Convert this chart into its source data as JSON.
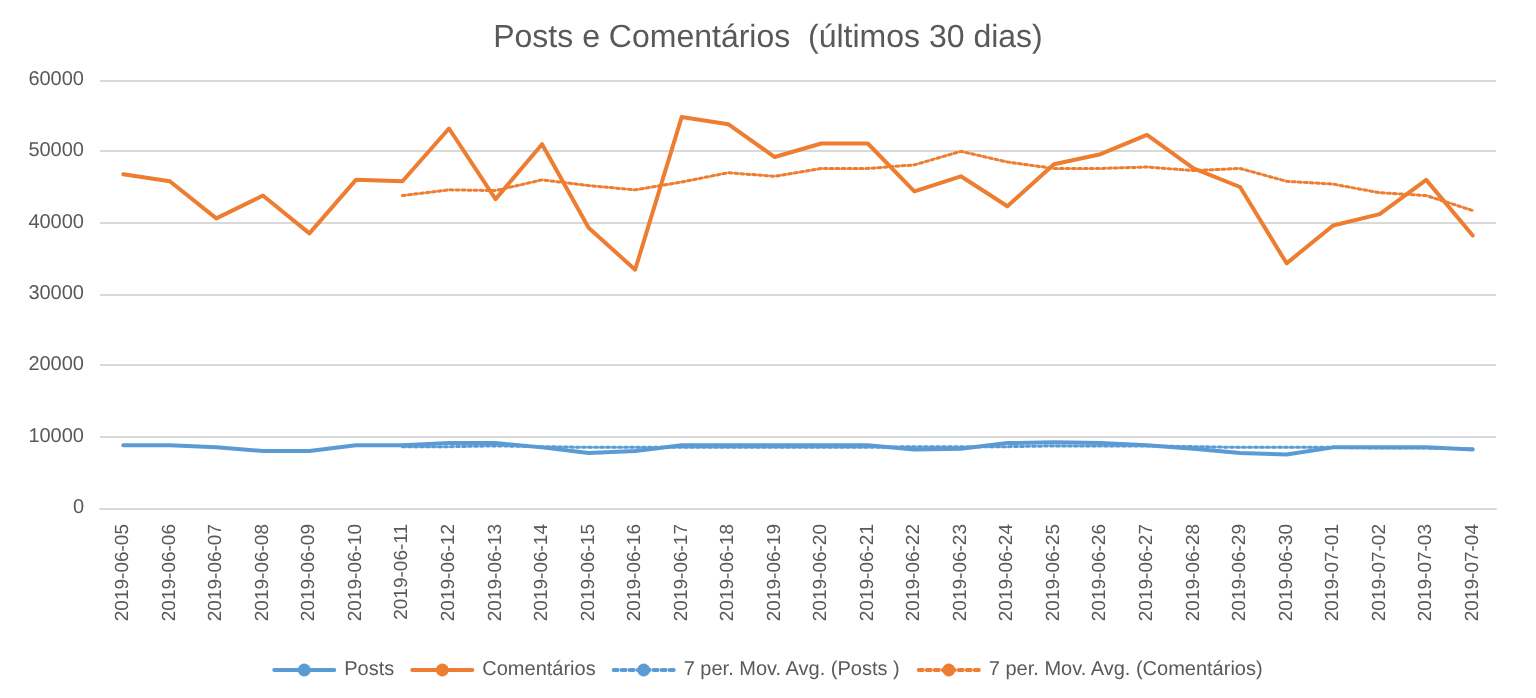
{
  "chart_data": {
    "type": "line",
    "title": "Posts e Comentários  (últimos 30 dias)",
    "categories": [
      "2019-06-05",
      "2019-06-06",
      "2019-06-07",
      "2019-06-08",
      "2019-06-09",
      "2019-06-10",
      "2019-06-11",
      "2019-06-12",
      "2019-06-13",
      "2019-06-14",
      "2019-06-15",
      "2019-06-16",
      "2019-06-17",
      "2019-06-18",
      "2019-06-19",
      "2019-06-20",
      "2019-06-21",
      "2019-06-22",
      "2019-06-23",
      "2019-06-24",
      "2019-06-25",
      "2019-06-26",
      "2019-06-27",
      "2019-06-28",
      "2019-06-29",
      "2019-06-30",
      "2019-07-01",
      "2019-07-02",
      "2019-07-03",
      "2019-07-04"
    ],
    "series": [
      {
        "name": "Posts",
        "color": "#5b9bd5",
        "line_style": "solid",
        "values": [
          8800,
          8800,
          8500,
          8000,
          8000,
          8800,
          8800,
          9100,
          9100,
          8500,
          7700,
          8000,
          8800,
          8800,
          8800,
          8800,
          8800,
          8200,
          8300,
          9100,
          9200,
          9100,
          8800,
          8300,
          7700,
          7500,
          8500,
          8500,
          8500,
          8200
        ]
      },
      {
        "name": "Comentários",
        "color": "#ed7d31",
        "line_style": "solid",
        "values": [
          46800,
          45800,
          40600,
          43800,
          38500,
          46000,
          45800,
          53200,
          43300,
          51000,
          39300,
          33400,
          54800,
          53800,
          49200,
          51100,
          51100,
          44400,
          46500,
          42300,
          48200,
          49600,
          52300,
          47600,
          45000,
          34300,
          39600,
          41200,
          46000,
          38200
        ]
      },
      {
        "name": "7 per. Mov. Avg. (Posts )",
        "color": "#5b9bd5",
        "line_style": "dotted",
        "values": [
          null,
          null,
          null,
          null,
          null,
          null,
          8600,
          8600,
          8700,
          8600,
          8500,
          8500,
          8500,
          8500,
          8500,
          8500,
          8500,
          8600,
          8600,
          8600,
          8700,
          8700,
          8700,
          8600,
          8500,
          8500,
          8500,
          8400,
          8400,
          8300
        ]
      },
      {
        "name": "7 per. Mov. Avg. (Comentários)",
        "color": "#ed7d31",
        "line_style": "dotted",
        "values": [
          null,
          null,
          null,
          null,
          null,
          null,
          43800,
          44600,
          44500,
          46000,
          45200,
          44600,
          45700,
          47000,
          46500,
          47600,
          47600,
          48100,
          50000,
          48500,
          47600,
          47600,
          47800,
          47300,
          47600,
          45800,
          45400,
          44200,
          43800,
          41700
        ]
      }
    ],
    "ylim": [
      0,
      60000
    ],
    "yticks": [
      0,
      10000,
      20000,
      30000,
      40000,
      50000,
      60000
    ],
    "grid": "y",
    "legend": "bottom",
    "marker": "none"
  }
}
